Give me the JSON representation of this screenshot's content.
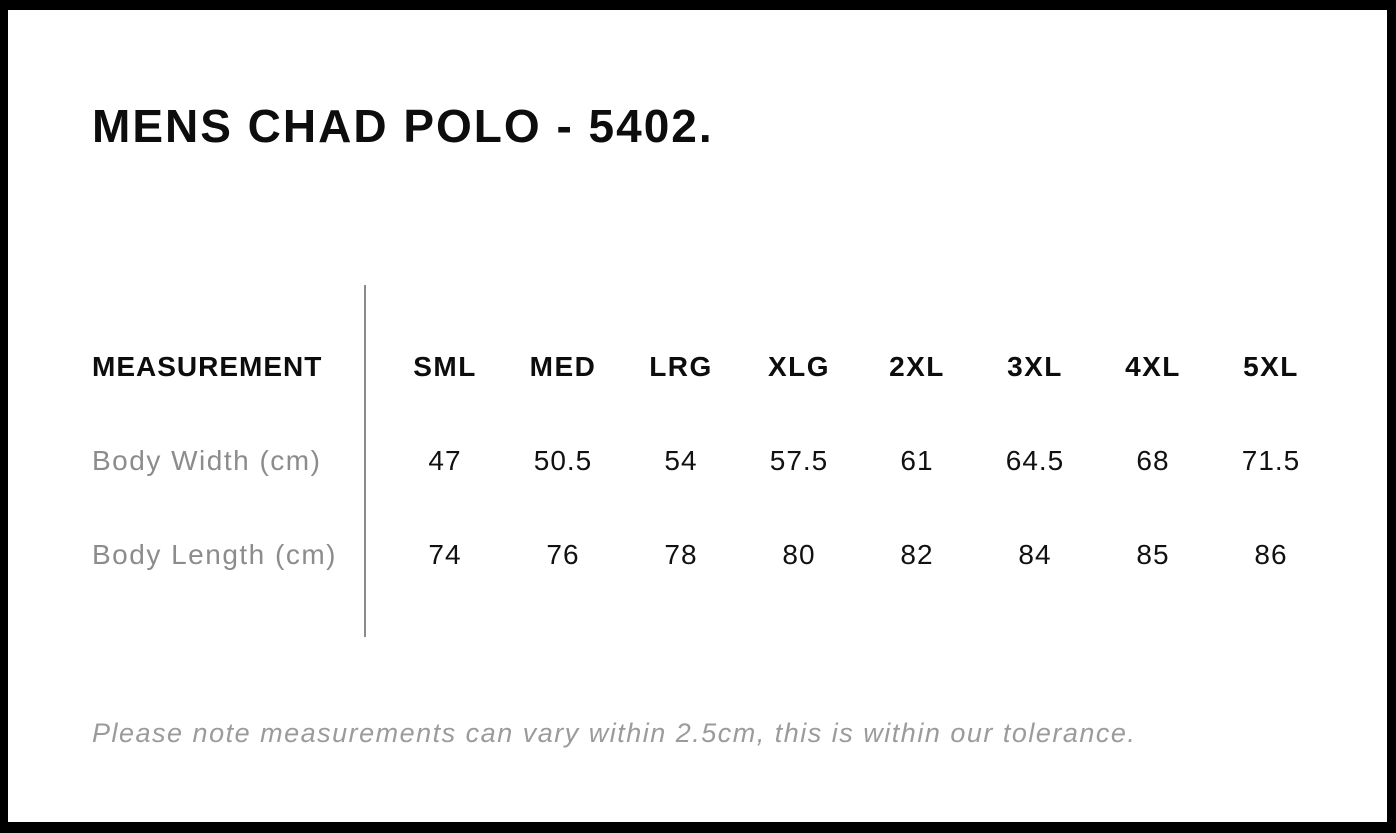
{
  "page": {
    "title": "MENS CHAD POLO - 5402."
  },
  "table": {
    "header": {
      "measurement_label": "MEASUREMENT",
      "sizes": [
        "SML",
        "MED",
        "LRG",
        "XLG",
        "2XL",
        "3XL",
        "4XL",
        "5XL"
      ]
    },
    "rows": [
      {
        "label": "Body Width (cm)",
        "values": [
          "47",
          "50.5",
          "54",
          "57.5",
          "61",
          "64.5",
          "68",
          "71.5"
        ]
      },
      {
        "label": "Body Length (cm)",
        "values": [
          "74",
          "76",
          "78",
          "80",
          "82",
          "84",
          "85",
          "86"
        ]
      }
    ]
  },
  "note": {
    "text": "Please note measurements can vary within 2.5cm, this is within our tolerance."
  },
  "colors": {
    "frame_border": "#000000",
    "heading_text": "#0d0d0d",
    "value_text": "#111111",
    "label_gray": "#8c8c8c",
    "note_gray": "#9b9b9b",
    "divider_gray": "#8a8a8a",
    "background": "#ffffff"
  },
  "chart_data": {
    "type": "table",
    "title": "MENS CHAD POLO - 5402.",
    "columns": [
      "MEASUREMENT",
      "SML",
      "MED",
      "LRG",
      "XLG",
      "2XL",
      "3XL",
      "4XL",
      "5XL"
    ],
    "rows": [
      [
        "Body Width (cm)",
        47,
        50.5,
        54,
        57.5,
        61,
        64.5,
        68,
        71.5
      ],
      [
        "Body Length (cm)",
        74,
        76,
        78,
        80,
        82,
        84,
        85,
        86
      ]
    ],
    "footnote": "Please note measurements can vary within 2.5cm, this is within our tolerance."
  }
}
